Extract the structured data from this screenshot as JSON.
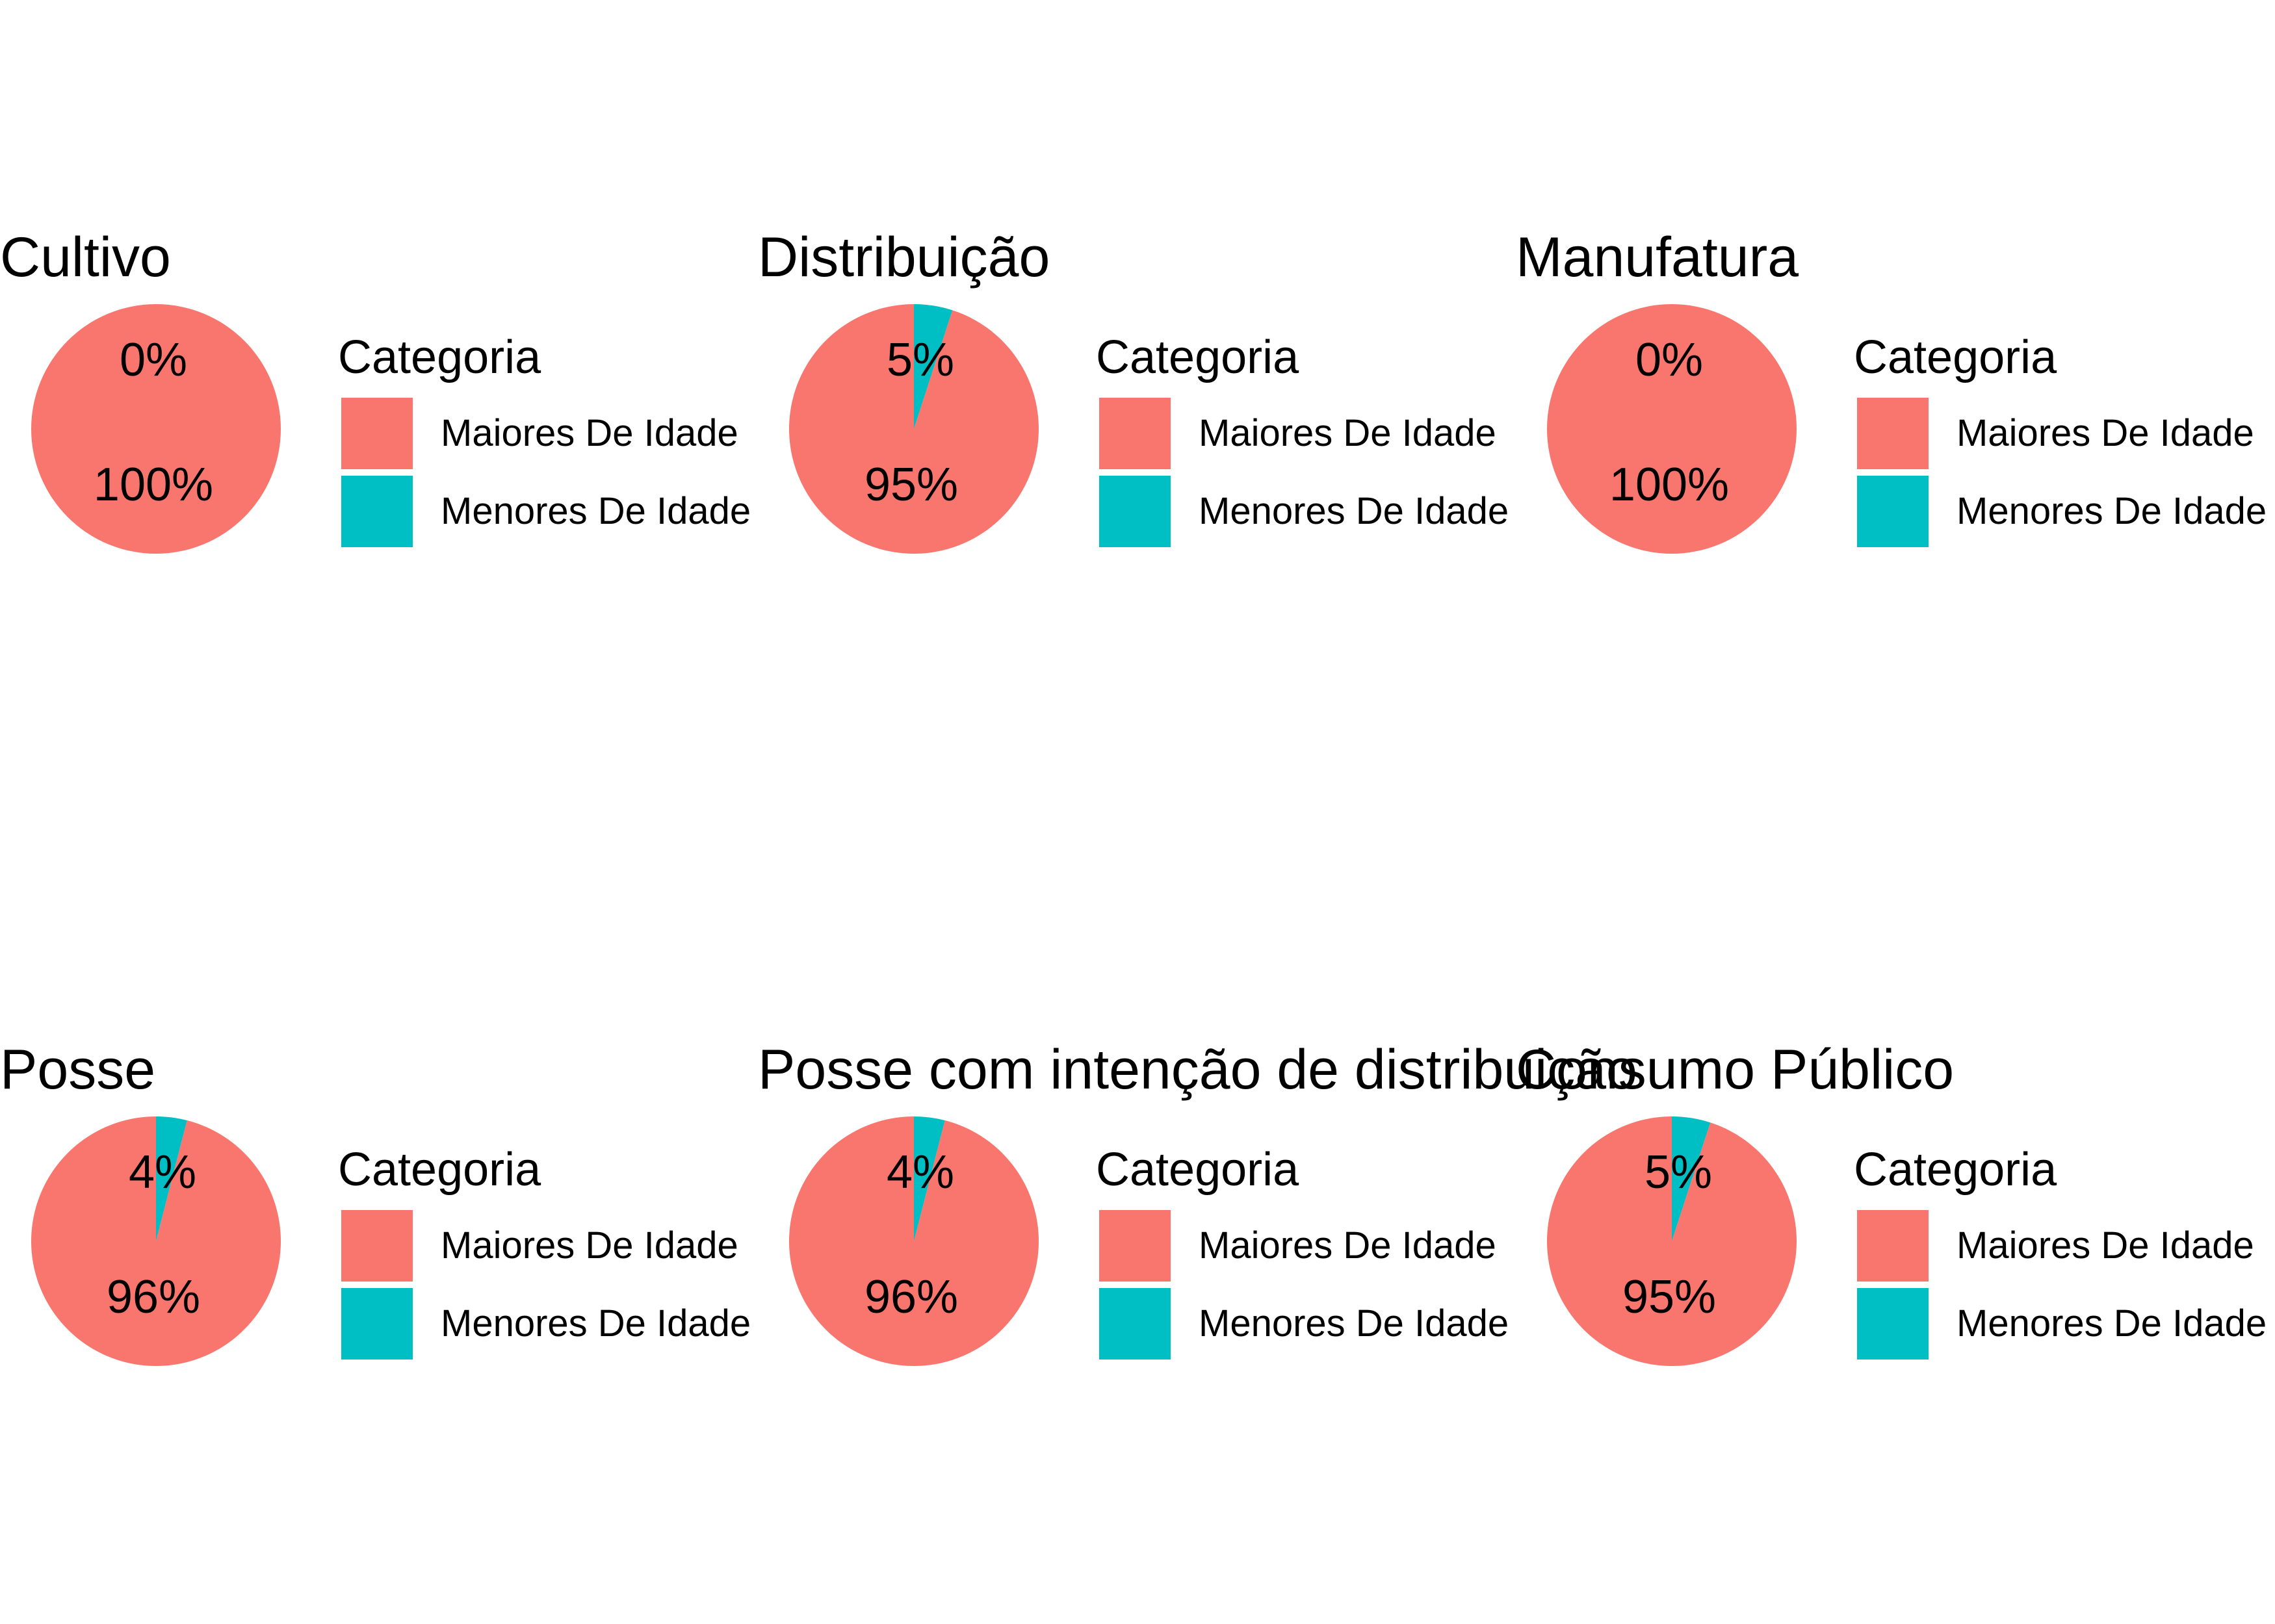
{
  "colors": {
    "maiores": "#F8766D",
    "menores": "#00BFC4"
  },
  "legend": {
    "title": "Categoria",
    "items": [
      "Maiores De Idade",
      "Menores De Idade"
    ]
  },
  "chart_data": [
    {
      "type": "pie",
      "title": "Cultivo",
      "categories": [
        "Maiores De Idade",
        "Menores De Idade"
      ],
      "values": [
        100,
        0
      ],
      "labels": [
        "100%",
        "0%"
      ]
    },
    {
      "type": "pie",
      "title": "Distribuição",
      "categories": [
        "Maiores De Idade",
        "Menores De Idade"
      ],
      "values": [
        95,
        5
      ],
      "labels": [
        "95%",
        "5%"
      ]
    },
    {
      "type": "pie",
      "title": "Manufatura",
      "categories": [
        "Maiores De Idade",
        "Menores De Idade"
      ],
      "values": [
        100,
        0
      ],
      "labels": [
        "100%",
        "0%"
      ]
    },
    {
      "type": "pie",
      "title": "Posse",
      "categories": [
        "Maiores De Idade",
        "Menores De Idade"
      ],
      "values": [
        96,
        4
      ],
      "labels": [
        "96%",
        "4%"
      ]
    },
    {
      "type": "pie",
      "title": "Posse com intenção de distribuição",
      "categories": [
        "Maiores De Idade",
        "Menores De Idade"
      ],
      "values": [
        96,
        4
      ],
      "labels": [
        "96%",
        "4%"
      ]
    },
    {
      "type": "pie",
      "title": "Consumo Público",
      "categories": [
        "Maiores De Idade",
        "Menores De Idade"
      ],
      "values": [
        95,
        5
      ],
      "labels": [
        "95%",
        "5%"
      ]
    }
  ]
}
